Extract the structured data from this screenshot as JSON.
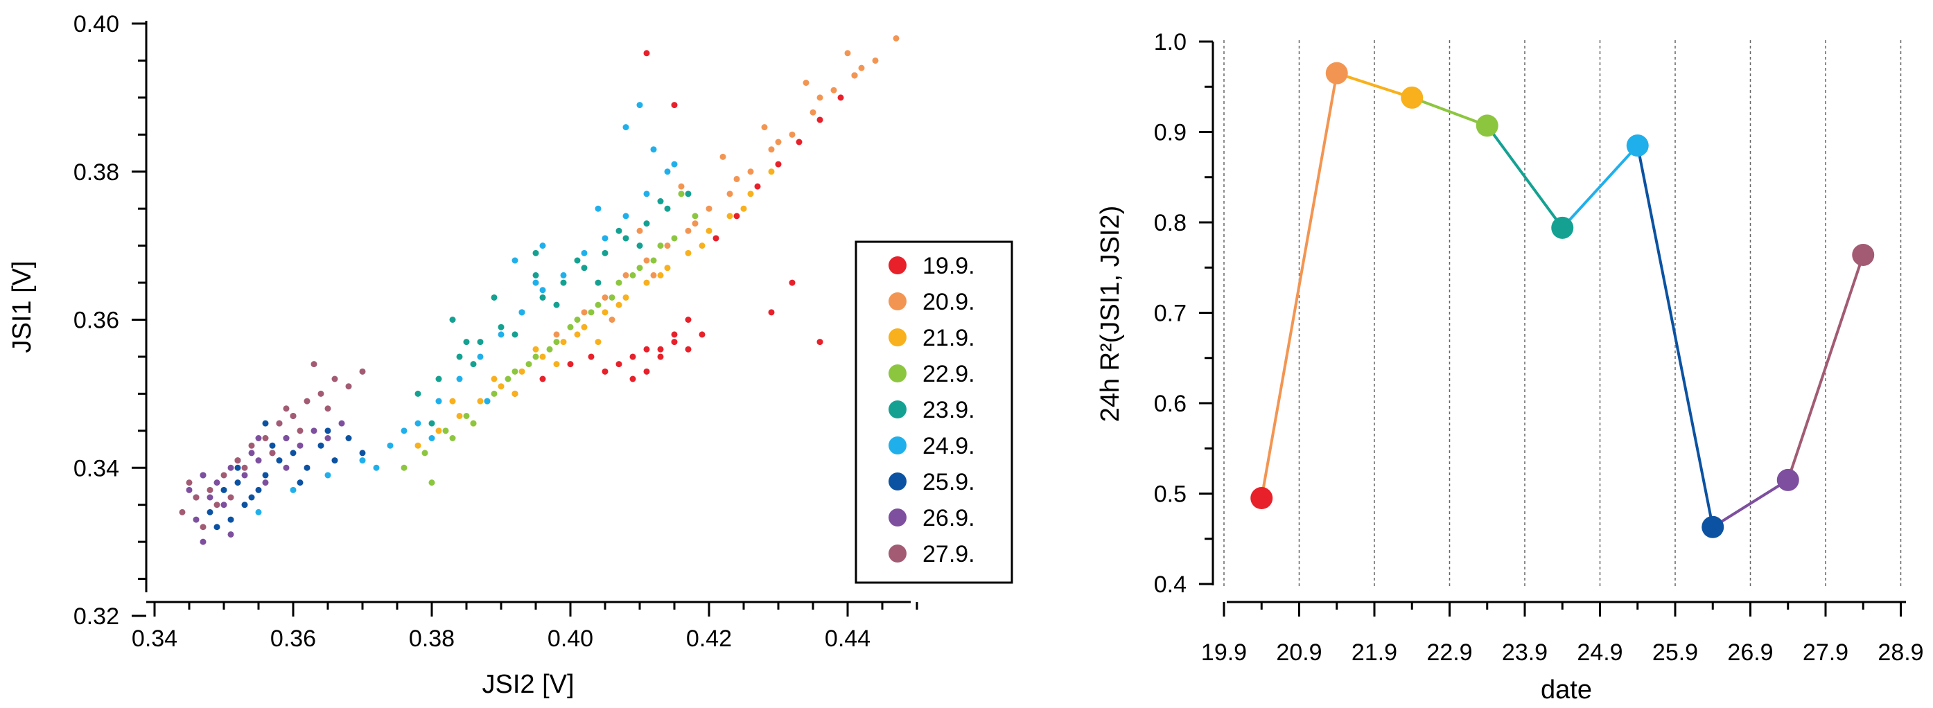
{
  "colors": {
    "19.9.": "#e8202a",
    "20.9.": "#f39552",
    "21.9.": "#f8b01c",
    "22.9.": "#8cc63f",
    "23.9.": "#14a192",
    "24.9.": "#1fb0ec",
    "25.9.": "#0c52a2",
    "26.9.": "#7d4f9e",
    "27.9.": "#a25b73"
  },
  "chart_data": [
    {
      "type": "scatter",
      "title": "",
      "xlabel": "JSI2 [V]",
      "ylabel": "JSI1 [V]",
      "xlim": [
        0.34,
        0.45
      ],
      "ylim": [
        0.32,
        0.4
      ],
      "xticks": [
        {
          "v": 0.34,
          "label": "0.34"
        },
        {
          "v": 0.36,
          "label": "0.36"
        },
        {
          "v": 0.38,
          "label": "0.38"
        },
        {
          "v": 0.4,
          "label": "0.40"
        },
        {
          "v": 0.42,
          "label": "0.42"
        },
        {
          "v": 0.44,
          "label": "0.44"
        }
      ],
      "yticks": [
        {
          "v": 0.32,
          "label": "0.32"
        },
        {
          "v": 0.34,
          "label": "0.34"
        },
        {
          "v": 0.36,
          "label": "0.36"
        },
        {
          "v": 0.38,
          "label": "0.38"
        },
        {
          "v": 0.4,
          "label": "0.40"
        }
      ],
      "legend": [
        "19.9.",
        "20.9.",
        "21.9.",
        "22.9.",
        "23.9.",
        "24.9.",
        "25.9.",
        "26.9.",
        "27.9."
      ],
      "legend_position": "lower-right",
      "series": [
        {
          "name": "19.9.",
          "x": [
            0.392,
            0.396,
            0.4,
            0.403,
            0.405,
            0.407,
            0.409,
            0.411,
            0.413,
            0.415,
            0.417,
            0.419,
            0.409,
            0.411,
            0.413,
            0.415,
            0.417,
            0.421,
            0.424,
            0.427,
            0.43,
            0.433,
            0.436,
            0.439,
            0.441,
            0.411,
            0.415,
            0.429,
            0.432,
            0.436
          ],
          "y": [
            0.35,
            0.352,
            0.354,
            0.355,
            0.353,
            0.354,
            0.355,
            0.356,
            0.355,
            0.357,
            0.356,
            0.358,
            0.352,
            0.353,
            0.356,
            0.358,
            0.36,
            0.371,
            0.374,
            0.378,
            0.381,
            0.384,
            0.387,
            0.39,
            0.393,
            0.396,
            0.389,
            0.361,
            0.365,
            0.357
          ]
        },
        {
          "name": "20.9.",
          "x": [
            0.398,
            0.402,
            0.405,
            0.408,
            0.411,
            0.414,
            0.417,
            0.42,
            0.423,
            0.426,
            0.429,
            0.432,
            0.435,
            0.438,
            0.441,
            0.444,
            0.447,
            0.406,
            0.412,
            0.418,
            0.424,
            0.43,
            0.436,
            0.442,
            0.41,
            0.416,
            0.422,
            0.428,
            0.434,
            0.44
          ],
          "y": [
            0.358,
            0.361,
            0.363,
            0.366,
            0.368,
            0.37,
            0.372,
            0.375,
            0.377,
            0.38,
            0.383,
            0.385,
            0.388,
            0.391,
            0.393,
            0.395,
            0.398,
            0.36,
            0.366,
            0.373,
            0.379,
            0.384,
            0.39,
            0.394,
            0.372,
            0.378,
            0.382,
            0.386,
            0.392,
            0.396
          ]
        },
        {
          "name": "21.9.",
          "x": [
            0.378,
            0.381,
            0.384,
            0.387,
            0.39,
            0.393,
            0.396,
            0.399,
            0.402,
            0.405,
            0.408,
            0.411,
            0.414,
            0.417,
            0.42,
            0.423,
            0.426,
            0.429,
            0.383,
            0.389,
            0.395,
            0.401,
            0.407,
            0.413,
            0.419,
            0.425,
            0.386,
            0.392,
            0.398,
            0.404
          ],
          "y": [
            0.343,
            0.345,
            0.347,
            0.349,
            0.351,
            0.353,
            0.355,
            0.357,
            0.359,
            0.361,
            0.363,
            0.365,
            0.367,
            0.369,
            0.372,
            0.374,
            0.377,
            0.38,
            0.349,
            0.352,
            0.356,
            0.358,
            0.362,
            0.366,
            0.37,
            0.375,
            0.346,
            0.35,
            0.354,
            0.357
          ]
        },
        {
          "name": "22.9.",
          "x": [
            0.376,
            0.379,
            0.382,
            0.385,
            0.388,
            0.391,
            0.394,
            0.397,
            0.4,
            0.403,
            0.406,
            0.409,
            0.412,
            0.415,
            0.418,
            0.38,
            0.386,
            0.392,
            0.398,
            0.404,
            0.41,
            0.416,
            0.383,
            0.389,
            0.395,
            0.401,
            0.407,
            0.413
          ],
          "y": [
            0.34,
            0.342,
            0.345,
            0.347,
            0.349,
            0.352,
            0.354,
            0.356,
            0.359,
            0.361,
            0.363,
            0.366,
            0.368,
            0.371,
            0.374,
            0.338,
            0.346,
            0.353,
            0.357,
            0.362,
            0.367,
            0.377,
            0.344,
            0.35,
            0.355,
            0.36,
            0.365,
            0.37
          ]
        },
        {
          "name": "23.9.",
          "x": [
            0.378,
            0.381,
            0.384,
            0.387,
            0.39,
            0.393,
            0.396,
            0.399,
            0.402,
            0.405,
            0.408,
            0.411,
            0.414,
            0.417,
            0.383,
            0.389,
            0.395,
            0.401,
            0.407,
            0.413,
            0.386,
            0.392,
            0.398,
            0.404,
            0.41,
            0.38,
            0.385,
            0.395
          ],
          "y": [
            0.35,
            0.352,
            0.355,
            0.357,
            0.359,
            0.361,
            0.363,
            0.365,
            0.367,
            0.369,
            0.371,
            0.373,
            0.375,
            0.377,
            0.36,
            0.363,
            0.366,
            0.368,
            0.372,
            0.376,
            0.354,
            0.358,
            0.362,
            0.365,
            0.37,
            0.346,
            0.357,
            0.369
          ]
        },
        {
          "name": "24.9.",
          "x": [
            0.355,
            0.36,
            0.365,
            0.37,
            0.374,
            0.378,
            0.381,
            0.384,
            0.387,
            0.39,
            0.393,
            0.396,
            0.399,
            0.402,
            0.405,
            0.408,
            0.411,
            0.414,
            0.372,
            0.38,
            0.388,
            0.396,
            0.404,
            0.412,
            0.376,
            0.392,
            0.408,
            0.41,
            0.415,
            0.395
          ],
          "y": [
            0.334,
            0.337,
            0.339,
            0.341,
            0.343,
            0.346,
            0.349,
            0.352,
            0.355,
            0.358,
            0.361,
            0.364,
            0.366,
            0.369,
            0.371,
            0.374,
            0.377,
            0.38,
            0.34,
            0.344,
            0.349,
            0.37,
            0.375,
            0.383,
            0.345,
            0.368,
            0.386,
            0.389,
            0.381,
            0.365
          ]
        },
        {
          "name": "25.9.",
          "x": [
            0.346,
            0.348,
            0.35,
            0.352,
            0.354,
            0.356,
            0.358,
            0.36,
            0.362,
            0.364,
            0.366,
            0.368,
            0.37,
            0.349,
            0.351,
            0.353,
            0.355,
            0.357,
            0.359,
            0.347,
            0.352,
            0.356,
            0.361,
            0.365
          ],
          "y": [
            0.336,
            0.334,
            0.337,
            0.338,
            0.336,
            0.339,
            0.341,
            0.342,
            0.34,
            0.343,
            0.341,
            0.344,
            0.342,
            0.332,
            0.333,
            0.335,
            0.337,
            0.343,
            0.344,
            0.339,
            0.34,
            0.346,
            0.338,
            0.345
          ]
        },
        {
          "name": "26.9.",
          "x": [
            0.345,
            0.347,
            0.349,
            0.351,
            0.353,
            0.355,
            0.357,
            0.359,
            0.361,
            0.363,
            0.365,
            0.367,
            0.346,
            0.348,
            0.35,
            0.352,
            0.354,
            0.356,
            0.358,
            0.36,
            0.347,
            0.351,
            0.355,
            0.359
          ],
          "y": [
            0.337,
            0.339,
            0.338,
            0.34,
            0.339,
            0.341,
            0.342,
            0.344,
            0.343,
            0.345,
            0.344,
            0.346,
            0.333,
            0.336,
            0.335,
            0.341,
            0.342,
            0.338,
            0.346,
            0.347,
            0.33,
            0.331,
            0.344,
            0.34
          ]
        },
        {
          "name": "27.9.",
          "x": [
            0.344,
            0.346,
            0.348,
            0.35,
            0.352,
            0.354,
            0.356,
            0.358,
            0.36,
            0.362,
            0.364,
            0.366,
            0.368,
            0.37,
            0.345,
            0.349,
            0.353,
            0.357,
            0.361,
            0.365,
            0.347,
            0.351,
            0.359,
            0.363
          ],
          "y": [
            0.334,
            0.336,
            0.337,
            0.339,
            0.341,
            0.343,
            0.344,
            0.346,
            0.347,
            0.349,
            0.35,
            0.352,
            0.351,
            0.353,
            0.338,
            0.335,
            0.34,
            0.342,
            0.345,
            0.348,
            0.332,
            0.336,
            0.348,
            0.354
          ]
        }
      ]
    },
    {
      "type": "line",
      "title": "",
      "xlabel": "date",
      "ylabel": "24h R²(JSI1, JSI2)",
      "xlim": [
        0,
        9
      ],
      "ylim": [
        0.38,
        1.0
      ],
      "xticks": [
        {
          "v": 0,
          "label": "19.9"
        },
        {
          "v": 1,
          "label": "20.9"
        },
        {
          "v": 2,
          "label": "21.9"
        },
        {
          "v": 3,
          "label": "22.9"
        },
        {
          "v": 4,
          "label": "23.9"
        },
        {
          "v": 5,
          "label": "24.9"
        },
        {
          "v": 6,
          "label": "25.9"
        },
        {
          "v": 7,
          "label": "26.9"
        },
        {
          "v": 8,
          "label": "27.9"
        },
        {
          "v": 9,
          "label": "28.9"
        }
      ],
      "yticks": [
        {
          "v": 0.4,
          "label": "0.4"
        },
        {
          "v": 0.5,
          "label": "0.5"
        },
        {
          "v": 0.6,
          "label": "0.6"
        },
        {
          "v": 0.7,
          "label": "0.7"
        },
        {
          "v": 0.8,
          "label": "0.8"
        },
        {
          "v": 0.9,
          "label": "0.9"
        },
        {
          "v": 1.0,
          "label": "1.0"
        }
      ],
      "grid": "vertical-dashed",
      "series": [
        {
          "name": "19.9.",
          "x": 0.5,
          "y": 0.495
        },
        {
          "name": "20.9.",
          "x": 1.5,
          "y": 0.965
        },
        {
          "name": "21.9.",
          "x": 2.5,
          "y": 0.938
        },
        {
          "name": "22.9.",
          "x": 3.5,
          "y": 0.907
        },
        {
          "name": "23.9.",
          "x": 4.5,
          "y": 0.794
        },
        {
          "name": "24.9.",
          "x": 5.5,
          "y": 0.885
        },
        {
          "name": "25.9.",
          "x": 6.5,
          "y": 0.463
        },
        {
          "name": "26.9.",
          "x": 7.5,
          "y": 0.515
        },
        {
          "name": "27.9.",
          "x": 8.5,
          "y": 0.764
        }
      ]
    }
  ]
}
